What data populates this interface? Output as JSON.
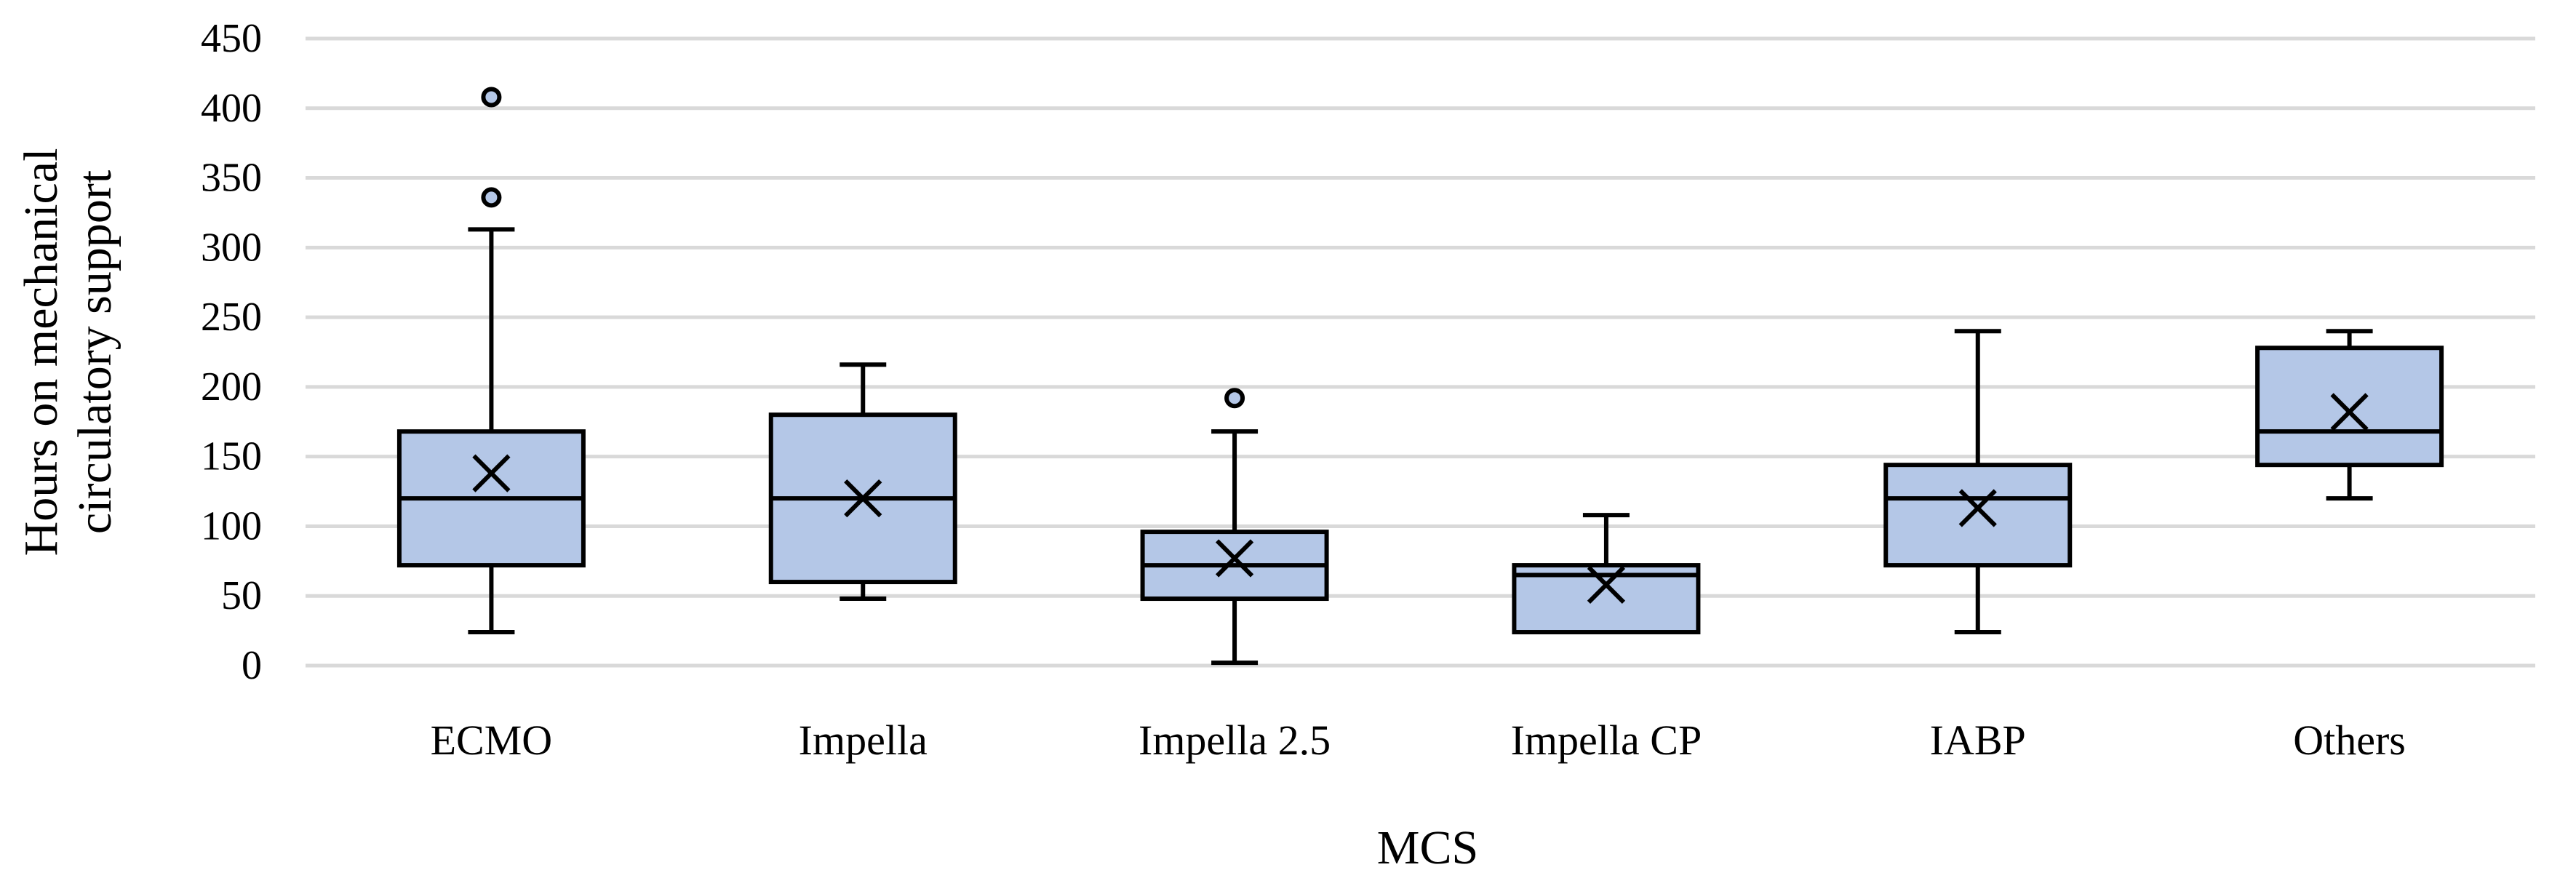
{
  "chart_data": {
    "type": "box",
    "title": "",
    "xlabel": "MCS",
    "ylabel": [
      "Hours on mechanical",
      "circulatory support"
    ],
    "ylim": [
      0,
      450
    ],
    "yticks": [
      0,
      50,
      100,
      150,
      200,
      250,
      300,
      350,
      400,
      450
    ],
    "grid": "horizontal",
    "legend": "none",
    "colors": {
      "box_fill": "#b4c7e7",
      "box_stroke": "#000000",
      "grid": "#d9d9d9",
      "outlier_fill": "#b4c7e7"
    },
    "categories": [
      "ECMO",
      "Impella",
      "Impella 2.5",
      "Impella CP",
      "IABP",
      "Others"
    ],
    "boxes": [
      {
        "category": "ECMO",
        "whisker_low": 24,
        "q1": 72,
        "median": 120,
        "q3": 168,
        "whisker_high": 313,
        "mean": 138,
        "outliers": [
          336,
          408
        ]
      },
      {
        "category": "Impella",
        "whisker_low": 48,
        "q1": 60,
        "median": 120,
        "q3": 180,
        "whisker_high": 216,
        "mean": 120,
        "outliers": []
      },
      {
        "category": "Impella 2.5",
        "whisker_low": 2,
        "q1": 48,
        "median": 72,
        "q3": 96,
        "whisker_high": 168,
        "mean": 77,
        "outliers": [
          192
        ]
      },
      {
        "category": "Impella CP",
        "whisker_low": 24,
        "q1": 24,
        "median": 65,
        "q3": 72,
        "whisker_high": 108,
        "mean": 58,
        "outliers": []
      },
      {
        "category": "IABP",
        "whisker_low": 24,
        "q1": 72,
        "median": 120,
        "q3": 144,
        "whisker_high": 240,
        "mean": 113,
        "outliers": []
      },
      {
        "category": "Others",
        "whisker_low": 120,
        "q1": 144,
        "median": 168,
        "q3": 228,
        "whisker_high": 240,
        "mean": 182,
        "outliers": []
      }
    ]
  }
}
